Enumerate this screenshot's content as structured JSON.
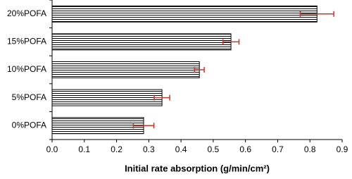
{
  "chart_data": {
    "type": "hbar",
    "categories": [
      "0%POFA",
      "5%POFA",
      "10%POFA",
      "15%POFA",
      "20%POFA"
    ],
    "values": [
      0.284,
      0.341,
      0.457,
      0.555,
      0.822
    ],
    "errors": [
      0.032,
      0.024,
      0.015,
      0.025,
      0.052
    ],
    "color": "#000000",
    "error_color": "#c0392b",
    "xlabel": "Initial rate absorption (g/min/cm²)",
    "xlim": [
      0,
      0.9
    ],
    "xticks": [
      {
        "value": 0,
        "label": "0.0"
      },
      0.1,
      0.2,
      0.3,
      0.4,
      0.5,
      0.6,
      0.7,
      0.8,
      0.9
    ]
  }
}
